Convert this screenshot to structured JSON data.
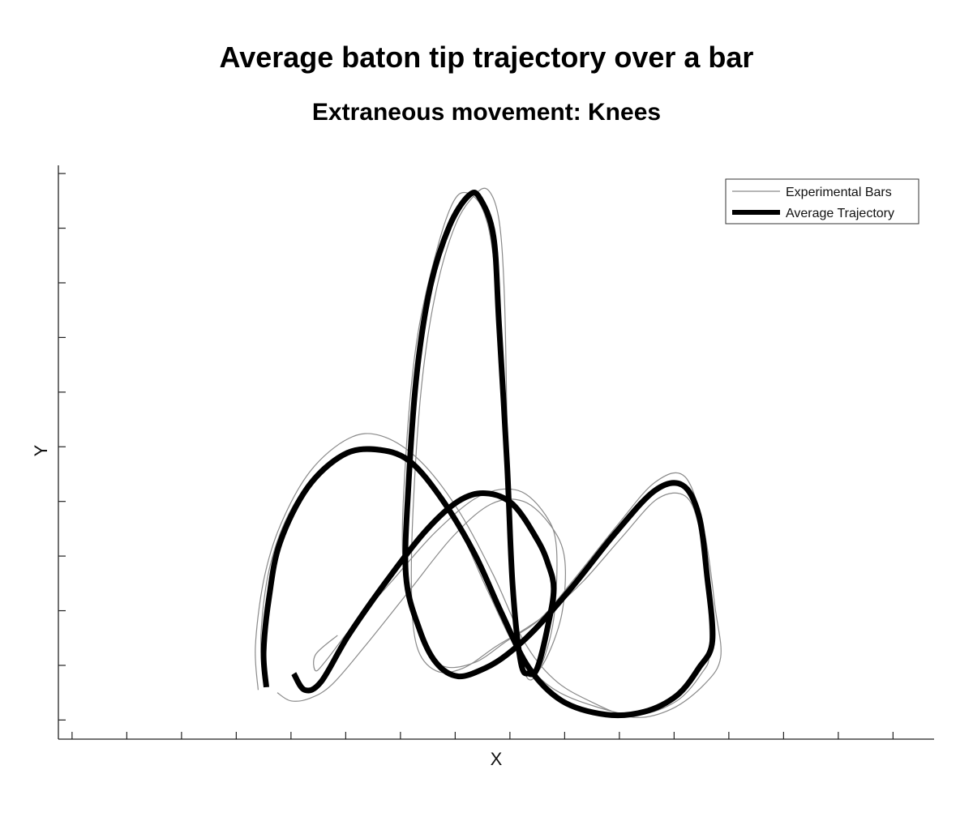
{
  "chart_data": {
    "type": "line",
    "title": "Average baton tip trajectory over a bar",
    "subtitle": "Extraneous movement: Knees",
    "xlabel": "X",
    "ylabel": "Y",
    "x_tick_labels_shown": false,
    "y_tick_labels_shown": false,
    "xlim": [
      -3.0,
      13.0
    ],
    "ylim": [
      0.0,
      10.5
    ],
    "grid": false,
    "legend": {
      "position": "top-right",
      "entries": [
        "Experimental Bars",
        "Average Trajectory"
      ]
    },
    "colors": {
      "experimental": "#8a8a8a",
      "average": "#000000"
    },
    "series": [
      {
        "name": "Average Trajectory",
        "role": "average",
        "points": [
          [
            0.8,
            0.95
          ],
          [
            0.75,
            1.6
          ],
          [
            0.85,
            2.6
          ],
          [
            1.05,
            3.6
          ],
          [
            1.55,
            4.6
          ],
          [
            2.2,
            5.2
          ],
          [
            2.8,
            5.3
          ],
          [
            3.4,
            5.1
          ],
          [
            4.0,
            4.4
          ],
          [
            4.6,
            3.4
          ],
          [
            5.1,
            2.3
          ],
          [
            5.6,
            1.3
          ],
          [
            6.2,
            0.7
          ],
          [
            7.0,
            0.45
          ],
          [
            7.7,
            0.5
          ],
          [
            8.3,
            0.8
          ],
          [
            8.7,
            1.3
          ],
          [
            8.95,
            1.8
          ],
          [
            8.85,
            3.0
          ],
          [
            8.7,
            4.1
          ],
          [
            8.4,
            4.65
          ],
          [
            7.9,
            4.55
          ],
          [
            7.2,
            3.8
          ],
          [
            6.4,
            2.8
          ],
          [
            5.7,
            2.0
          ],
          [
            5.2,
            1.55
          ],
          [
            4.8,
            1.3
          ],
          [
            4.3,
            1.15
          ],
          [
            3.9,
            1.4
          ],
          [
            3.6,
            2.0
          ],
          [
            3.35,
            3.0
          ],
          [
            3.4,
            4.7
          ],
          [
            3.55,
            6.7
          ],
          [
            3.8,
            8.3
          ],
          [
            4.15,
            9.4
          ],
          [
            4.5,
            9.95
          ],
          [
            4.7,
            9.9
          ],
          [
            4.95,
            9.2
          ],
          [
            5.05,
            7.6
          ],
          [
            5.2,
            5.0
          ],
          [
            5.3,
            2.8
          ],
          [
            5.45,
            1.4
          ],
          [
            5.6,
            1.2
          ],
          [
            5.75,
            1.3
          ],
          [
            5.95,
            2.1
          ],
          [
            6.05,
            2.75
          ],
          [
            5.95,
            3.2
          ],
          [
            5.75,
            3.65
          ],
          [
            5.3,
            4.3
          ],
          [
            4.8,
            4.5
          ],
          [
            4.3,
            4.35
          ],
          [
            3.7,
            3.8
          ],
          [
            3.0,
            2.9
          ],
          [
            2.3,
            1.9
          ],
          [
            1.8,
            1.05
          ],
          [
            1.5,
            0.9
          ],
          [
            1.3,
            1.2
          ]
        ]
      },
      {
        "role": "experimental",
        "points": [
          [
            0.65,
            0.9
          ],
          [
            0.6,
            1.7
          ],
          [
            0.75,
            2.9
          ],
          [
            1.05,
            3.9
          ],
          [
            1.6,
            4.9
          ],
          [
            2.3,
            5.5
          ],
          [
            2.9,
            5.55
          ],
          [
            3.6,
            5.1
          ],
          [
            4.3,
            4.2
          ],
          [
            4.95,
            3.0
          ],
          [
            5.5,
            1.8
          ],
          [
            6.05,
            1.1
          ],
          [
            6.7,
            0.7
          ],
          [
            7.5,
            0.4
          ],
          [
            8.2,
            0.55
          ],
          [
            8.8,
            1.0
          ],
          [
            9.1,
            1.5
          ],
          [
            9.0,
            2.4
          ],
          [
            8.8,
            3.8
          ],
          [
            8.45,
            4.8
          ],
          [
            7.9,
            4.7
          ],
          [
            7.2,
            3.9
          ],
          [
            6.4,
            2.9
          ],
          [
            5.8,
            2.2
          ],
          [
            5.2,
            1.8
          ],
          [
            4.6,
            1.4
          ],
          [
            4.0,
            1.35
          ],
          [
            3.6,
            1.9
          ],
          [
            3.3,
            3.2
          ],
          [
            3.35,
            5.2
          ],
          [
            3.55,
            7.3
          ],
          [
            3.9,
            8.9
          ],
          [
            4.2,
            9.8
          ],
          [
            4.45,
            10.0
          ],
          [
            4.75,
            9.7
          ],
          [
            4.95,
            8.8
          ],
          [
            5.1,
            6.8
          ],
          [
            5.25,
            4.2
          ],
          [
            5.35,
            2.2
          ],
          [
            5.55,
            1.15
          ],
          [
            5.8,
            1.3
          ],
          [
            6.05,
            2.2
          ],
          [
            6.1,
            3.5
          ],
          [
            5.9,
            4.1
          ],
          [
            5.4,
            4.55
          ],
          [
            4.7,
            4.45
          ],
          [
            3.9,
            3.8
          ],
          [
            3.1,
            2.9
          ],
          [
            2.4,
            2.1
          ],
          [
            1.9,
            1.45
          ],
          [
            1.7,
            1.25
          ],
          [
            1.7,
            1.55
          ],
          [
            2.1,
            1.9
          ]
        ]
      },
      {
        "role": "experimental",
        "points": [
          [
            0.75,
            1.05
          ],
          [
            0.7,
            1.9
          ],
          [
            0.85,
            3.1
          ],
          [
            1.2,
            4.1
          ],
          [
            1.75,
            4.9
          ],
          [
            2.35,
            5.3
          ],
          [
            3.0,
            5.3
          ],
          [
            3.7,
            4.8
          ],
          [
            4.3,
            3.9
          ],
          [
            4.85,
            2.7
          ],
          [
            5.4,
            1.6
          ],
          [
            6.0,
            0.95
          ],
          [
            6.8,
            0.6
          ],
          [
            7.6,
            0.45
          ],
          [
            8.3,
            0.7
          ],
          [
            8.75,
            1.2
          ],
          [
            8.9,
            1.6
          ],
          [
            8.85,
            2.8
          ],
          [
            8.7,
            3.9
          ],
          [
            8.45,
            4.45
          ],
          [
            7.95,
            4.4
          ],
          [
            7.3,
            3.7
          ],
          [
            6.6,
            2.9
          ],
          [
            6.0,
            2.35
          ],
          [
            5.5,
            2.0
          ],
          [
            5.0,
            1.7
          ],
          [
            4.4,
            1.3
          ],
          [
            3.9,
            1.25
          ],
          [
            3.55,
            1.7
          ],
          [
            3.45,
            2.8
          ],
          [
            3.5,
            4.6
          ],
          [
            3.65,
            6.6
          ],
          [
            3.9,
            8.2
          ],
          [
            4.25,
            9.4
          ],
          [
            4.6,
            9.95
          ],
          [
            4.85,
            10.05
          ],
          [
            5.05,
            9.5
          ],
          [
            5.15,
            8.1
          ],
          [
            5.2,
            5.6
          ],
          [
            5.25,
            3.2
          ],
          [
            5.4,
            1.6
          ],
          [
            5.6,
            1.15
          ],
          [
            5.9,
            1.45
          ],
          [
            6.2,
            2.3
          ],
          [
            6.25,
            3.3
          ],
          [
            6.0,
            3.9
          ],
          [
            5.5,
            4.35
          ],
          [
            4.9,
            4.3
          ],
          [
            4.2,
            3.7
          ],
          [
            3.4,
            2.7
          ],
          [
            2.6,
            1.7
          ],
          [
            2.0,
            1.0
          ],
          [
            1.6,
            0.75
          ],
          [
            1.25,
            0.7
          ],
          [
            1.0,
            0.85
          ]
        ]
      }
    ]
  }
}
